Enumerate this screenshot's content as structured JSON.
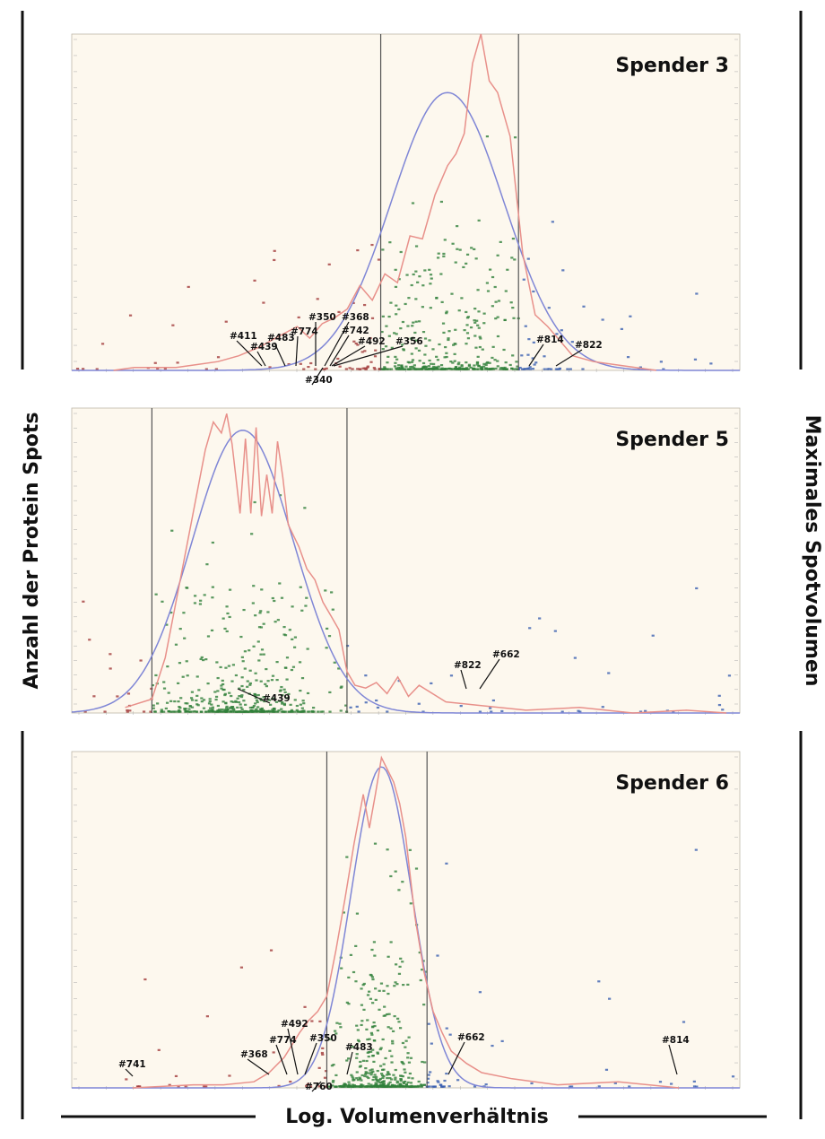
{
  "labels": {
    "y_left": "Anzahl der Protein Spots",
    "y_right": "Maximales Spotvolumen",
    "x": "Log. Volumenverhältnis"
  },
  "colors": {
    "background": "#fdf8ee",
    "histogram": "#e8908a",
    "gaussian": "#7f86d6",
    "spots_low": "#a13a3a",
    "spots_mid": "#2f7f3a",
    "spots_high": "#3a5fb0",
    "threshold_line": "#555555"
  },
  "chart_data": [
    {
      "type": "line",
      "title": "Spender 3",
      "xlabel": "",
      "ylabel": "",
      "xlim": [
        -0.9,
        0.7
      ],
      "ylim": [
        0,
        1.15
      ],
      "grid": false,
      "thresholds": [
        -0.16,
        0.17
      ],
      "series": [
        {
          "kind": "histogram",
          "x": [
            -0.8,
            -0.75,
            -0.7,
            -0.65,
            -0.6,
            -0.55,
            -0.5,
            -0.45,
            -0.4,
            -0.36,
            -0.33,
            -0.3,
            -0.27,
            -0.24,
            -0.21,
            -0.18,
            -0.15,
            -0.12,
            -0.09,
            -0.06,
            -0.03,
            0.0,
            0.02,
            0.04,
            0.06,
            0.08,
            0.1,
            0.12,
            0.15,
            0.18,
            0.21,
            0.24,
            0.27,
            0.3,
            0.35,
            0.4,
            0.5
          ],
          "values": [
            0,
            0.01,
            0.01,
            0.01,
            0.02,
            0.03,
            0.05,
            0.08,
            0.12,
            0.15,
            0.11,
            0.16,
            0.18,
            0.21,
            0.29,
            0.24,
            0.33,
            0.3,
            0.46,
            0.45,
            0.6,
            0.7,
            0.74,
            0.81,
            1.05,
            1.2,
            0.99,
            0.95,
            0.8,
            0.4,
            0.19,
            0.15,
            0.1,
            0.05,
            0.03,
            0.02,
            0.0
          ]
        },
        {
          "kind": "gaussian",
          "mean": 0.0,
          "sd": 0.135,
          "peak": 0.95
        }
      ],
      "annotations": [
        "#411",
        "#439",
        "#483",
        "#774",
        "#350",
        "#368",
        "#742",
        "#492",
        "#356",
        "#340",
        "#814",
        "#822"
      ]
    },
    {
      "type": "line",
      "title": "Spender 5",
      "xlabel": "",
      "ylabel": "",
      "xlim": [
        -1.0,
        1.5
      ],
      "ylim": [
        0,
        1.1
      ],
      "grid": false,
      "thresholds": [
        -0.7,
        0.03
      ],
      "series": [
        {
          "kind": "histogram",
          "x": [
            -0.8,
            -0.7,
            -0.65,
            -0.6,
            -0.55,
            -0.5,
            -0.47,
            -0.44,
            -0.42,
            -0.4,
            -0.37,
            -0.35,
            -0.33,
            -0.31,
            -0.29,
            -0.27,
            -0.25,
            -0.23,
            -0.21,
            -0.19,
            -0.17,
            -0.15,
            -0.12,
            -0.09,
            -0.06,
            -0.03,
            0.0,
            0.03,
            0.06,
            0.1,
            0.14,
            0.18,
            0.22,
            0.26,
            0.3,
            0.4,
            0.5,
            0.7,
            0.9,
            1.1,
            1.3,
            1.45
          ],
          "values": [
            0.02,
            0.05,
            0.2,
            0.45,
            0.7,
            0.95,
            1.05,
            1.01,
            1.08,
            0.97,
            0.72,
            0.99,
            0.72,
            1.03,
            0.71,
            0.86,
            0.72,
            0.98,
            0.85,
            0.68,
            0.64,
            0.6,
            0.52,
            0.48,
            0.4,
            0.35,
            0.3,
            0.15,
            0.1,
            0.09,
            0.11,
            0.07,
            0.13,
            0.06,
            0.1,
            0.04,
            0.03,
            0.01,
            0.02,
            0.0,
            0.01,
            0.0
          ]
        },
        {
          "kind": "gaussian",
          "mean": -0.36,
          "sd": 0.19,
          "peak": 1.02
        }
      ],
      "annotations": [
        "#439",
        "#822",
        "#662"
      ]
    },
    {
      "type": "line",
      "title": "Spender 6",
      "xlabel": "",
      "ylabel": "",
      "xlim": [
        -1.0,
        1.2
      ],
      "ylim": [
        0,
        1.1
      ],
      "grid": false,
      "thresholds": [
        -0.16,
        0.17
      ],
      "series": [
        {
          "kind": "histogram",
          "x": [
            -0.8,
            -0.6,
            -0.5,
            -0.4,
            -0.35,
            -0.3,
            -0.25,
            -0.22,
            -0.19,
            -0.16,
            -0.13,
            -0.1,
            -0.07,
            -0.04,
            -0.02,
            0.0,
            0.02,
            0.04,
            0.06,
            0.08,
            0.1,
            0.13,
            0.16,
            0.19,
            0.22,
            0.25,
            0.3,
            0.35,
            0.45,
            0.6,
            0.8,
            1.0
          ],
          "values": [
            0.0,
            0.01,
            0.01,
            0.02,
            0.05,
            0.1,
            0.18,
            0.22,
            0.25,
            0.3,
            0.45,
            0.62,
            0.8,
            0.96,
            0.85,
            0.96,
            1.08,
            1.04,
            1.0,
            0.93,
            0.82,
            0.56,
            0.38,
            0.25,
            0.18,
            0.12,
            0.08,
            0.05,
            0.03,
            0.01,
            0.02,
            0.0
          ]
        },
        {
          "kind": "gaussian",
          "mean": 0.02,
          "sd": 0.1,
          "peak": 1.05
        }
      ],
      "annotations": [
        "#741",
        "#368",
        "#774",
        "#492",
        "#350",
        "#483",
        "#760",
        "#662",
        "#814"
      ]
    }
  ]
}
